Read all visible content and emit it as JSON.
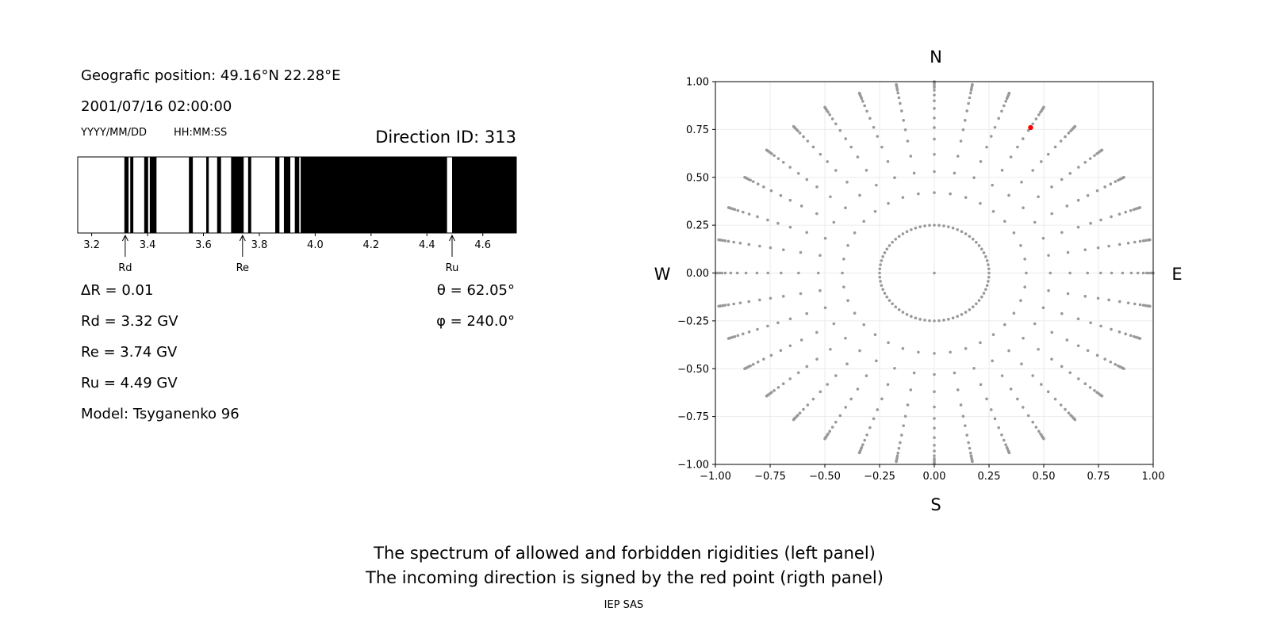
{
  "info": {
    "position": "Geografic position: 49.16°N 22.28°E",
    "datetime": "2001/07/16 02:00:00",
    "date_format": "YYYY/MM/DD",
    "time_format": "HH:MM:SS",
    "direction_id": "Direction ID: 313",
    "delta_r": "ΔR = 0.01",
    "rd": "Rd = 3.32 GV",
    "re": "Re = 3.74 GV",
    "ru": "Ru = 4.49 GV",
    "model": "Model: Tsyganenko 96",
    "theta": "θ = 62.05°",
    "phi": "φ = 240.0°"
  },
  "footer": {
    "line1": "The spectrum of allowed and forbidden rigidities (left panel)",
    "line2": "The incoming direction is signed by the red point (rigth panel)",
    "credit": "IEP SAS"
  },
  "chart_data": [
    {
      "type": "bar",
      "xlim": [
        3.15,
        4.72
      ],
      "xticks": [
        "3.2",
        "3.4",
        "3.6",
        "3.8",
        "4.0",
        "4.2",
        "4.4",
        "4.6"
      ],
      "allowed_color": "#ffffff",
      "forbidden_color": "#000000",
      "forbidden_intervals": [
        [
          3.317,
          3.332
        ],
        [
          3.338,
          3.349
        ],
        [
          3.388,
          3.402
        ],
        [
          3.408,
          3.432
        ],
        [
          3.548,
          3.562
        ],
        [
          3.61,
          3.619
        ],
        [
          3.649,
          3.663
        ],
        [
          3.699,
          3.744
        ],
        [
          3.76,
          3.771
        ],
        [
          3.857,
          3.872
        ],
        [
          3.888,
          3.911
        ],
        [
          3.927,
          3.943
        ],
        [
          3.948,
          4.472
        ],
        [
          4.49,
          4.72
        ]
      ],
      "markers": [
        {
          "label": "Rd",
          "value": 3.32
        },
        {
          "label": "Re",
          "value": 3.74
        },
        {
          "label": "Ru",
          "value": 4.49
        }
      ]
    },
    {
      "type": "scatter",
      "xlim": [
        -1,
        1
      ],
      "ylim": [
        -1,
        1
      ],
      "xticks": [
        "−1.00",
        "−0.75",
        "−0.50",
        "−0.25",
        "0.00",
        "0.25",
        "0.50",
        "0.75",
        "1.00"
      ],
      "yticks": [
        "−1.00",
        "−0.75",
        "−0.50",
        "−0.25",
        "0.00",
        "0.25",
        "0.50",
        "0.75",
        "1.00"
      ],
      "grid": true,
      "compass": {
        "n": "N",
        "s": "S",
        "e": "E",
        "w": "W"
      },
      "direction_grid": {
        "azimuth_step_deg": 10,
        "radii": [
          0.25,
          0.42,
          0.53,
          0.62,
          0.7,
          0.76,
          0.81,
          0.86,
          0.9,
          0.93,
          0.955,
          0.97,
          0.98,
          0.99,
          0.995,
          1.0
        ],
        "center_point": [
          0,
          0
        ],
        "color": "#999999"
      },
      "highlight": {
        "x": 0.44,
        "y": 0.76,
        "color": "#ff0000"
      }
    }
  ]
}
